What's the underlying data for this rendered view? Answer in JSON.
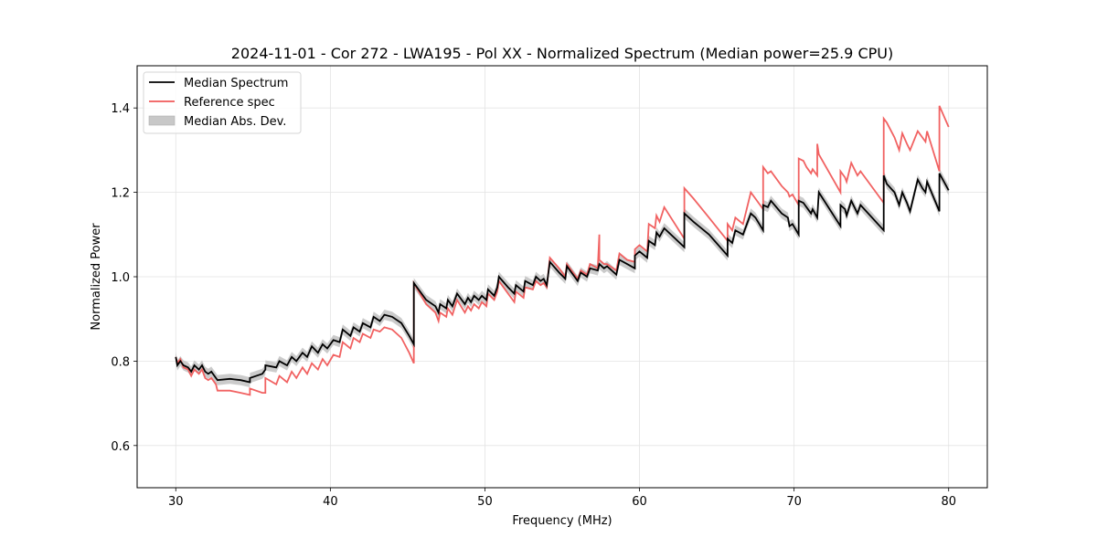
{
  "chart_data": {
    "type": "line",
    "title": "2024-11-01 - Cor 272 - LWA195 - Pol XX - Normalized Spectrum (Median power=25.9 CPU)",
    "xlabel": "Frequency (MHz)",
    "ylabel": "Normalized Power",
    "xlim": [
      27.5,
      82.5
    ],
    "ylim": [
      0.5,
      1.5
    ],
    "xticks": [
      30,
      40,
      50,
      60,
      70,
      80
    ],
    "xtick_labels": [
      "30",
      "40",
      "50",
      "60",
      "70",
      "80"
    ],
    "yticks": [
      0.6,
      0.8,
      1.0,
      1.2,
      1.4
    ],
    "ytick_labels": [
      "0.6",
      "0.8",
      "1.0",
      "1.2",
      "1.4"
    ],
    "grid": true,
    "legend": {
      "position": "top-left",
      "entries": [
        {
          "label": "Median Spectrum",
          "kind": "line",
          "color": "#000000"
        },
        {
          "label": "Reference spec",
          "kind": "line",
          "color": "#f05a5a"
        },
        {
          "label": "Median Abs. Dev.",
          "kind": "patch",
          "color": "#c8c8c8"
        }
      ]
    },
    "mad_halfwidth": 0.012,
    "series": [
      {
        "name": "Median Spectrum",
        "color": "#000000",
        "points": [
          [
            30.0,
            0.81
          ],
          [
            30.1,
            0.79
          ],
          [
            30.3,
            0.8
          ],
          [
            30.5,
            0.79
          ],
          [
            30.8,
            0.785
          ],
          [
            31.0,
            0.775
          ],
          [
            31.2,
            0.79
          ],
          [
            31.5,
            0.78
          ],
          [
            31.7,
            0.79
          ],
          [
            31.9,
            0.775
          ],
          [
            32.1,
            0.77
          ],
          [
            32.3,
            0.775
          ],
          [
            32.6,
            0.76
          ],
          [
            32.7,
            0.755
          ],
          [
            33.5,
            0.758
          ],
          [
            34.2,
            0.755
          ],
          [
            34.8,
            0.75
          ],
          [
            34.8,
            0.76
          ],
          [
            35.6,
            0.77
          ],
          [
            35.8,
            0.78
          ],
          [
            35.8,
            0.79
          ],
          [
            36.5,
            0.785
          ],
          [
            36.7,
            0.8
          ],
          [
            37.2,
            0.79
          ],
          [
            37.5,
            0.81
          ],
          [
            37.8,
            0.8
          ],
          [
            38.2,
            0.82
          ],
          [
            38.5,
            0.81
          ],
          [
            38.8,
            0.835
          ],
          [
            39.2,
            0.82
          ],
          [
            39.5,
            0.84
          ],
          [
            39.8,
            0.83
          ],
          [
            40.2,
            0.85
          ],
          [
            40.6,
            0.845
          ],
          [
            40.8,
            0.875
          ],
          [
            41.3,
            0.86
          ],
          [
            41.5,
            0.88
          ],
          [
            41.9,
            0.87
          ],
          [
            42.1,
            0.89
          ],
          [
            42.6,
            0.88
          ],
          [
            42.8,
            0.905
          ],
          [
            43.2,
            0.895
          ],
          [
            43.5,
            0.91
          ],
          [
            44.0,
            0.905
          ],
          [
            44.6,
            0.89
          ],
          [
            45.1,
            0.86
          ],
          [
            45.4,
            0.84
          ],
          [
            45.4,
            0.985
          ],
          [
            46.2,
            0.945
          ],
          [
            46.8,
            0.93
          ],
          [
            47.0,
            0.915
          ],
          [
            47.1,
            0.935
          ],
          [
            47.5,
            0.925
          ],
          [
            47.6,
            0.945
          ],
          [
            47.9,
            0.93
          ],
          [
            48.2,
            0.96
          ],
          [
            48.7,
            0.935
          ],
          [
            48.9,
            0.95
          ],
          [
            49.1,
            0.94
          ],
          [
            49.3,
            0.955
          ],
          [
            49.6,
            0.945
          ],
          [
            49.8,
            0.955
          ],
          [
            50.1,
            0.945
          ],
          [
            50.2,
            0.97
          ],
          [
            50.6,
            0.955
          ],
          [
            50.8,
            0.975
          ],
          [
            50.9,
            1.0
          ],
          [
            51.5,
            0.975
          ],
          [
            51.9,
            0.96
          ],
          [
            52.0,
            0.98
          ],
          [
            52.5,
            0.965
          ],
          [
            52.6,
            0.99
          ],
          [
            53.1,
            0.98
          ],
          [
            53.3,
            1.0
          ],
          [
            53.6,
            0.99
          ],
          [
            53.8,
            0.995
          ],
          [
            54.0,
            0.98
          ],
          [
            54.2,
            1.035
          ],
          [
            54.8,
            1.01
          ],
          [
            55.2,
            0.995
          ],
          [
            55.3,
            1.025
          ],
          [
            56.0,
            0.99
          ],
          [
            56.2,
            1.01
          ],
          [
            56.6,
            1.0
          ],
          [
            56.8,
            1.02
          ],
          [
            57.3,
            1.015
          ],
          [
            57.4,
            1.03
          ],
          [
            57.7,
            1.02
          ],
          [
            57.9,
            1.025
          ],
          [
            58.5,
            1.005
          ],
          [
            58.7,
            1.04
          ],
          [
            59.2,
            1.03
          ],
          [
            59.7,
            1.02
          ],
          [
            59.7,
            1.05
          ],
          [
            60.0,
            1.06
          ],
          [
            60.5,
            1.045
          ],
          [
            60.6,
            1.085
          ],
          [
            61.0,
            1.075
          ],
          [
            61.1,
            1.105
          ],
          [
            61.3,
            1.095
          ],
          [
            61.6,
            1.115
          ],
          [
            62.9,
            1.07
          ],
          [
            62.9,
            1.15
          ],
          [
            63.5,
            1.13
          ],
          [
            64.5,
            1.1
          ],
          [
            65.7,
            1.05
          ],
          [
            65.7,
            1.09
          ],
          [
            66.0,
            1.08
          ],
          [
            66.2,
            1.11
          ],
          [
            66.7,
            1.1
          ],
          [
            67.2,
            1.15
          ],
          [
            67.5,
            1.14
          ],
          [
            68.0,
            1.11
          ],
          [
            68.0,
            1.17
          ],
          [
            68.3,
            1.165
          ],
          [
            68.5,
            1.18
          ],
          [
            69.2,
            1.15
          ],
          [
            69.6,
            1.14
          ],
          [
            69.7,
            1.12
          ],
          [
            69.9,
            1.125
          ],
          [
            70.3,
            1.1
          ],
          [
            70.3,
            1.18
          ],
          [
            70.6,
            1.175
          ],
          [
            70.8,
            1.165
          ],
          [
            71.1,
            1.15
          ],
          [
            71.2,
            1.16
          ],
          [
            71.5,
            1.14
          ],
          [
            71.6,
            1.2
          ],
          [
            73.0,
            1.12
          ],
          [
            73.0,
            1.17
          ],
          [
            73.3,
            1.16
          ],
          [
            73.4,
            1.145
          ],
          [
            73.7,
            1.18
          ],
          [
            74.1,
            1.15
          ],
          [
            74.3,
            1.17
          ],
          [
            75.8,
            1.11
          ],
          [
            75.8,
            1.24
          ],
          [
            76.0,
            1.22
          ],
          [
            76.5,
            1.2
          ],
          [
            76.8,
            1.17
          ],
          [
            77.0,
            1.2
          ],
          [
            77.3,
            1.175
          ],
          [
            77.5,
            1.155
          ],
          [
            78.0,
            1.23
          ],
          [
            78.3,
            1.21
          ],
          [
            78.5,
            1.2
          ],
          [
            78.6,
            1.225
          ],
          [
            79.4,
            1.155
          ],
          [
            79.4,
            1.245
          ],
          [
            80.0,
            1.205
          ]
        ]
      },
      {
        "name": "Reference spec",
        "color": "#f05a5a",
        "points": [
          [
            30.0,
            0.81
          ],
          [
            30.1,
            0.795
          ],
          [
            30.3,
            0.805
          ],
          [
            30.5,
            0.785
          ],
          [
            30.8,
            0.78
          ],
          [
            31.0,
            0.765
          ],
          [
            31.2,
            0.78
          ],
          [
            31.5,
            0.77
          ],
          [
            31.7,
            0.78
          ],
          [
            31.9,
            0.76
          ],
          [
            32.1,
            0.755
          ],
          [
            32.3,
            0.76
          ],
          [
            32.6,
            0.745
          ],
          [
            32.7,
            0.73
          ],
          [
            33.5,
            0.73
          ],
          [
            34.2,
            0.725
          ],
          [
            34.8,
            0.72
          ],
          [
            34.8,
            0.735
          ],
          [
            35.6,
            0.725
          ],
          [
            35.8,
            0.725
          ],
          [
            35.8,
            0.76
          ],
          [
            36.5,
            0.745
          ],
          [
            36.7,
            0.765
          ],
          [
            37.2,
            0.75
          ],
          [
            37.5,
            0.775
          ],
          [
            37.8,
            0.76
          ],
          [
            38.2,
            0.785
          ],
          [
            38.5,
            0.77
          ],
          [
            38.8,
            0.795
          ],
          [
            39.2,
            0.78
          ],
          [
            39.5,
            0.805
          ],
          [
            39.8,
            0.79
          ],
          [
            40.2,
            0.815
          ],
          [
            40.6,
            0.81
          ],
          [
            40.8,
            0.845
          ],
          [
            41.3,
            0.83
          ],
          [
            41.5,
            0.855
          ],
          [
            41.9,
            0.845
          ],
          [
            42.1,
            0.865
          ],
          [
            42.6,
            0.855
          ],
          [
            42.8,
            0.875
          ],
          [
            43.2,
            0.87
          ],
          [
            43.5,
            0.88
          ],
          [
            44.0,
            0.875
          ],
          [
            44.6,
            0.855
          ],
          [
            45.1,
            0.82
          ],
          [
            45.4,
            0.795
          ],
          [
            45.4,
            0.985
          ],
          [
            46.2,
            0.935
          ],
          [
            46.8,
            0.915
          ],
          [
            47.0,
            0.895
          ],
          [
            47.1,
            0.915
          ],
          [
            47.5,
            0.905
          ],
          [
            47.6,
            0.925
          ],
          [
            47.9,
            0.91
          ],
          [
            48.2,
            0.945
          ],
          [
            48.7,
            0.915
          ],
          [
            48.9,
            0.93
          ],
          [
            49.1,
            0.92
          ],
          [
            49.3,
            0.935
          ],
          [
            49.6,
            0.925
          ],
          [
            49.8,
            0.94
          ],
          [
            50.1,
            0.93
          ],
          [
            50.2,
            0.96
          ],
          [
            50.6,
            0.945
          ],
          [
            50.8,
            0.965
          ],
          [
            50.9,
            0.99
          ],
          [
            51.5,
            0.96
          ],
          [
            51.9,
            0.94
          ],
          [
            52.0,
            0.965
          ],
          [
            52.5,
            0.95
          ],
          [
            52.6,
            0.975
          ],
          [
            53.1,
            0.97
          ],
          [
            53.3,
            0.99
          ],
          [
            53.6,
            0.98
          ],
          [
            53.8,
            0.985
          ],
          [
            54.0,
            0.975
          ],
          [
            54.2,
            1.045
          ],
          [
            54.8,
            1.02
          ],
          [
            55.2,
            1.0
          ],
          [
            55.3,
            1.03
          ],
          [
            56.0,
            0.995
          ],
          [
            56.2,
            1.015
          ],
          [
            56.6,
            1.005
          ],
          [
            56.8,
            1.03
          ],
          [
            57.3,
            1.02
          ],
          [
            57.4,
            1.1
          ],
          [
            57.4,
            1.04
          ],
          [
            57.7,
            1.03
          ],
          [
            57.9,
            1.03
          ],
          [
            58.5,
            1.015
          ],
          [
            58.7,
            1.055
          ],
          [
            59.2,
            1.04
          ],
          [
            59.7,
            1.035
          ],
          [
            59.7,
            1.065
          ],
          [
            60.0,
            1.075
          ],
          [
            60.5,
            1.06
          ],
          [
            60.6,
            1.125
          ],
          [
            61.0,
            1.115
          ],
          [
            61.1,
            1.145
          ],
          [
            61.3,
            1.13
          ],
          [
            61.6,
            1.165
          ],
          [
            62.9,
            1.09
          ],
          [
            62.9,
            1.21
          ],
          [
            63.5,
            1.185
          ],
          [
            64.5,
            1.14
          ],
          [
            65.7,
            1.085
          ],
          [
            65.7,
            1.125
          ],
          [
            66.0,
            1.11
          ],
          [
            66.2,
            1.14
          ],
          [
            66.7,
            1.125
          ],
          [
            67.2,
            1.2
          ],
          [
            67.5,
            1.185
          ],
          [
            68.0,
            1.16
          ],
          [
            68.0,
            1.26
          ],
          [
            68.3,
            1.245
          ],
          [
            68.5,
            1.25
          ],
          [
            69.2,
            1.215
          ],
          [
            69.6,
            1.2
          ],
          [
            69.7,
            1.19
          ],
          [
            69.9,
            1.195
          ],
          [
            70.3,
            1.17
          ],
          [
            70.3,
            1.28
          ],
          [
            70.6,
            1.275
          ],
          [
            70.8,
            1.26
          ],
          [
            71.1,
            1.245
          ],
          [
            71.2,
            1.255
          ],
          [
            71.5,
            1.24
          ],
          [
            71.5,
            1.315
          ],
          [
            71.6,
            1.29
          ],
          [
            73.0,
            1.2
          ],
          [
            73.0,
            1.25
          ],
          [
            73.3,
            1.235
          ],
          [
            73.4,
            1.225
          ],
          [
            73.7,
            1.27
          ],
          [
            74.1,
            1.24
          ],
          [
            74.3,
            1.25
          ],
          [
            75.8,
            1.175
          ],
          [
            75.8,
            1.375
          ],
          [
            76.0,
            1.365
          ],
          [
            76.5,
            1.33
          ],
          [
            76.8,
            1.3
          ],
          [
            77.0,
            1.34
          ],
          [
            77.3,
            1.315
          ],
          [
            77.5,
            1.3
          ],
          [
            78.0,
            1.345
          ],
          [
            78.3,
            1.33
          ],
          [
            78.5,
            1.32
          ],
          [
            78.6,
            1.345
          ],
          [
            79.4,
            1.25
          ],
          [
            79.4,
            1.405
          ],
          [
            80.0,
            1.355
          ]
        ]
      }
    ]
  }
}
